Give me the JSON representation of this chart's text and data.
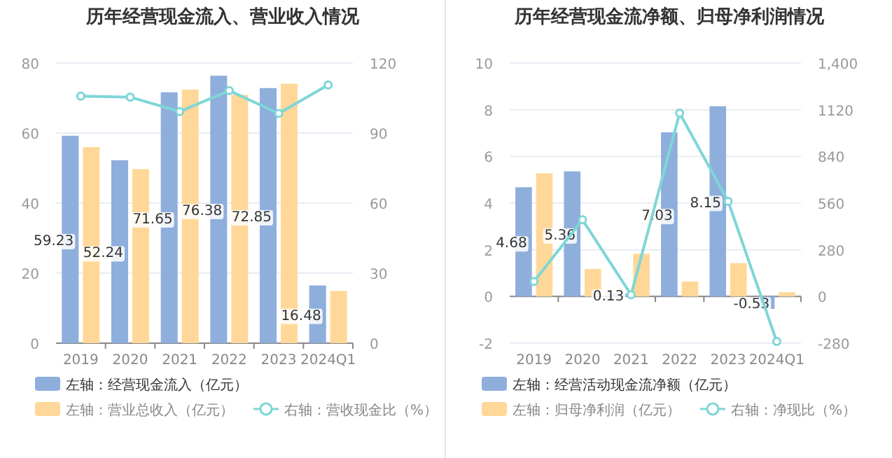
{
  "chart_data": [
    {
      "type": "bar",
      "title": "历年经营现金流入、营业收入情况",
      "categories": [
        "2019",
        "2020",
        "2021",
        "2022",
        "2023",
        "2024Q1"
      ],
      "series": [
        {
          "name": "左轴：经营现金流入（亿元）",
          "color": "#8eaedc",
          "values": [
            59.23,
            52.24,
            71.65,
            76.38,
            72.85,
            16.48
          ],
          "value_labels": [
            "59.23",
            "52.24",
            "71.65",
            "76.38",
            "72.85",
            "16.48"
          ]
        },
        {
          "name": "左轴：营业总收入（亿元）",
          "color": "#ffd899",
          "values": [
            56.0,
            49.7,
            72.4,
            70.9,
            74.1,
            14.9
          ]
        },
        {
          "name": "右轴：营收现金比（%）",
          "type": "line",
          "axis": "y2",
          "color": "#7fd6d6",
          "marker": "circle",
          "values": [
            105.8,
            105.4,
            99.2,
            108.2,
            98.4,
            110.6
          ]
        }
      ],
      "ylim": [
        0,
        80
      ],
      "yticks": [
        0,
        20,
        40,
        60,
        80
      ],
      "y2lim": [
        0,
        120
      ],
      "y2ticks": [
        0,
        30,
        60,
        90,
        120
      ],
      "grid": "y",
      "legend": "bottom"
    },
    {
      "type": "bar",
      "title": "历年经营现金流净额、归母净利润情况",
      "categories": [
        "2019",
        "2020",
        "2021",
        "2022",
        "2023",
        "2024Q1"
      ],
      "series": [
        {
          "name": "左轴：经营活动现金流净额（亿元）",
          "color": "#8eaedc",
          "values": [
            4.68,
            5.36,
            0.13,
            7.03,
            8.15,
            -0.53
          ],
          "value_labels": [
            "4.68",
            "5.36",
            "0.13",
            "7.03",
            "8.15",
            "-0.53"
          ]
        },
        {
          "name": "左轴：归母净利润（亿元）",
          "color": "#ffd899",
          "values": [
            5.28,
            1.18,
            1.83,
            0.64,
            1.43,
            0.18
          ]
        },
        {
          "name": "右轴：净现比（%）",
          "type": "line",
          "axis": "y2",
          "color": "#7fd6d6",
          "marker": "circle",
          "values": [
            90,
            460,
            10,
            1100,
            570,
            -270
          ]
        }
      ],
      "ylim": [
        -2,
        10
      ],
      "yticks": [
        -2,
        0,
        2,
        4,
        6,
        8,
        10
      ],
      "y2lim": [
        -280,
        1400
      ],
      "y2ticks": [
        -280,
        0,
        280,
        560,
        840,
        1120,
        {
          "value": 1400,
          "label": "1,400"
        }
      ],
      "grid": "y",
      "legend": "bottom"
    }
  ]
}
